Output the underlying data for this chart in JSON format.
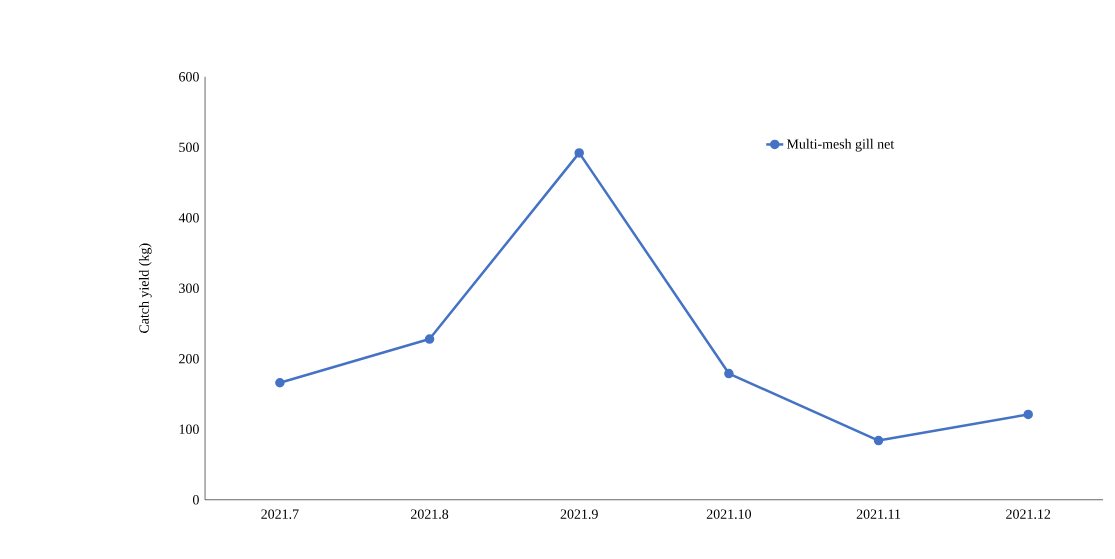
{
  "chart_data": {
    "type": "line",
    "ylabel": "Catch yield (kg)",
    "categories": [
      "2021.7",
      "2021.8",
      "2021.9",
      "2021.10",
      "2021.11",
      "2021.12"
    ],
    "series": [
      {
        "name": "Multi-mesh gill net",
        "color": "#4472c4",
        "values": [
          166,
          228,
          492,
          179,
          84,
          121
        ]
      }
    ],
    "ylim": [
      0,
      600
    ],
    "yticks": [
      0,
      100,
      200,
      300,
      400,
      500,
      600
    ],
    "grid": false,
    "legend": "top right",
    "marker": "circle",
    "line_style": "solid"
  }
}
